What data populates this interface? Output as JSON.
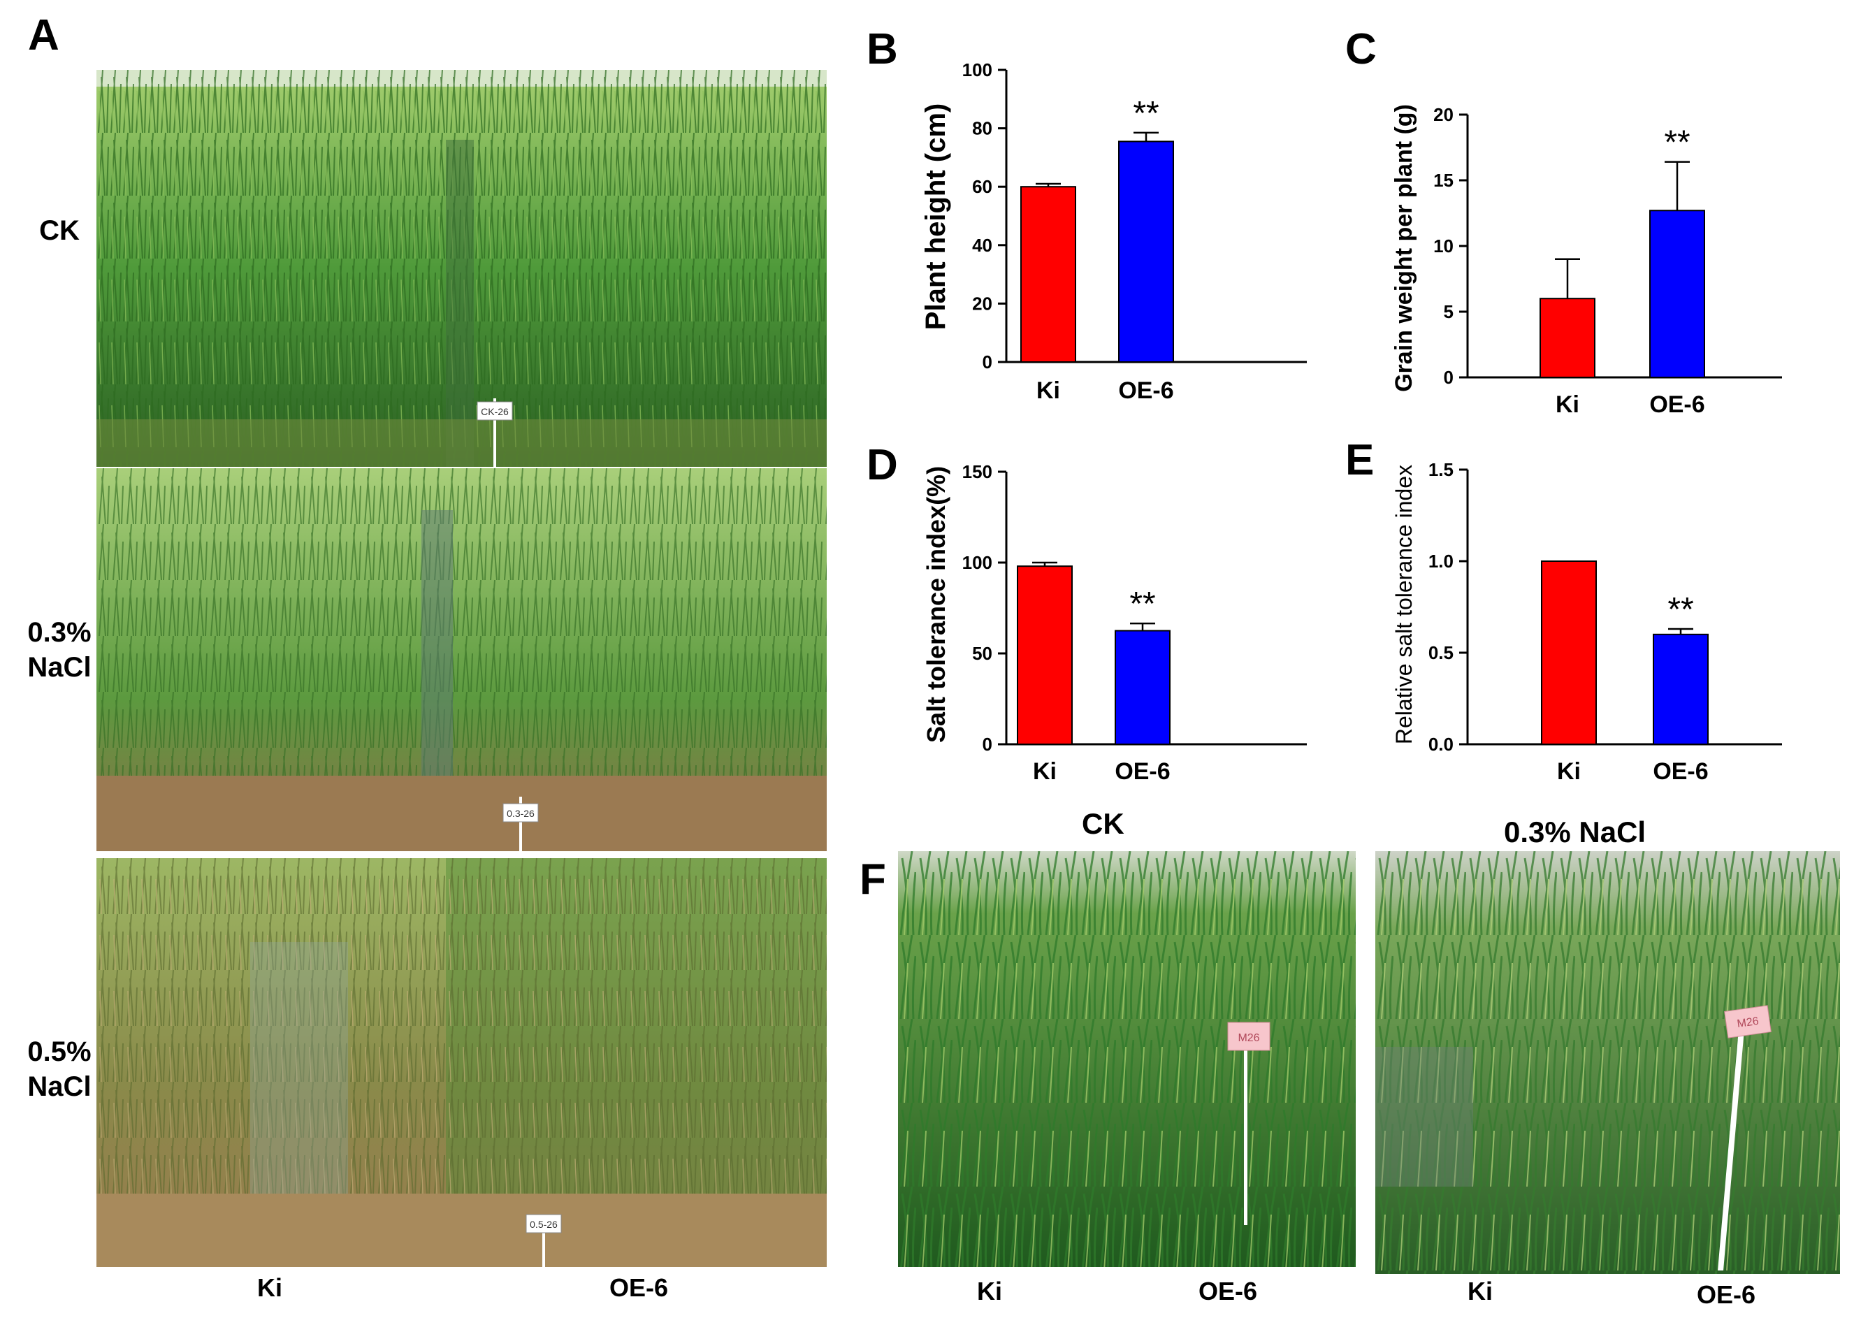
{
  "figure": {
    "panel_letters": {
      "A": "A",
      "B": "B",
      "C": "C",
      "D": "D",
      "E": "E",
      "F": "F"
    },
    "panel_a": {
      "row_labels": [
        "CK",
        "0.3%\nNaCl",
        "0.5%\nNaCl"
      ],
      "col_labels": [
        "Ki",
        "OE-6"
      ],
      "stake_labels": [
        "CK-26",
        "0.3-26",
        "0.5-26"
      ]
    },
    "panel_f": {
      "titles": [
        "CK",
        "0.3% NaCl"
      ],
      "col_labels_left": [
        "Ki",
        "OE-6"
      ],
      "col_labels_right": [
        "Ki",
        "OE-6"
      ],
      "stake_labels": [
        "M26",
        "M26"
      ]
    },
    "colors": {
      "ki": "#ff0000",
      "oe6": "#0000ff",
      "grass_dark": "#2f6b24",
      "grass_light": "#7fb34d",
      "mud": "#8b6a45",
      "stake_tag_pink": "#f7c6cc"
    }
  },
  "chart_data": [
    {
      "panel": "B",
      "type": "bar",
      "categories": [
        "Ki",
        "OE-6"
      ],
      "values": [
        60,
        75.5
      ],
      "errors": [
        1,
        3
      ],
      "significance": [
        "",
        "**"
      ],
      "ylabel": "Plant height (cm)",
      "ylim": [
        0,
        100
      ],
      "yticks": [
        "0",
        "20",
        "40",
        "60",
        "80",
        "100"
      ],
      "tickvals": [
        0,
        20,
        40,
        60,
        80,
        100
      ]
    },
    {
      "panel": "C",
      "type": "bar",
      "categories": [
        "Ki",
        "OE-6"
      ],
      "values": [
        6,
        12.7
      ],
      "errors": [
        3,
        3.7
      ],
      "significance": [
        "",
        "**"
      ],
      "ylabel": "Grain weight per plant (g)",
      "ylim": [
        0,
        20
      ],
      "yticks": [
        "0",
        "5",
        "10",
        "15",
        "20"
      ],
      "tickvals": [
        0,
        5,
        10,
        15,
        20
      ]
    },
    {
      "panel": "D",
      "type": "bar",
      "categories": [
        "Ki",
        "OE-6"
      ],
      "values": [
        98,
        62.5
      ],
      "errors": [
        2,
        4
      ],
      "significance": [
        "",
        "**"
      ],
      "ylabel": "Salt tolerance index(%)",
      "ylim": [
        0,
        150
      ],
      "yticks": [
        "0",
        "50",
        "100",
        "150"
      ],
      "tickvals": [
        0,
        50,
        100,
        150
      ]
    },
    {
      "panel": "E",
      "type": "bar",
      "categories": [
        "Ki",
        "OE-6"
      ],
      "values": [
        1.0,
        0.6
      ],
      "errors": [
        0,
        0.03
      ],
      "significance": [
        "",
        "**"
      ],
      "ylabel": "Relative salt tolerance index",
      "ylim": [
        0,
        1.5
      ],
      "yticks": [
        "0.0",
        "0.5",
        "1.0",
        "1.5"
      ],
      "tickvals": [
        0,
        0.5,
        1.0,
        1.5
      ]
    }
  ]
}
